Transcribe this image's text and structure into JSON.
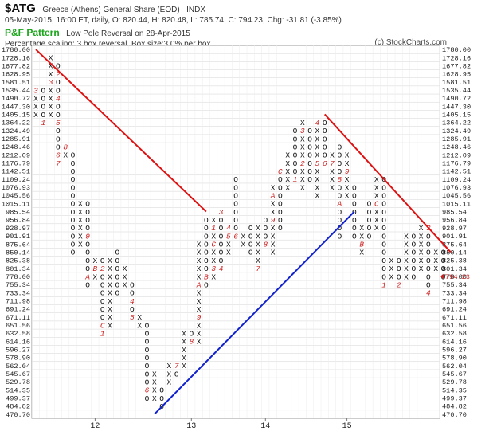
{
  "header": {
    "symbol": "$ATG",
    "name": "Greece (Athens) General Share (EOD)",
    "exchange": "INDX",
    "ohlc_line": "05-May-2015, 16:00 ET, daily, O: 820.44, H: 820.48, L: 785.74, C: 794.23, Chg: -31.81 (-3.85%)",
    "pattern_title": "P&F Pattern",
    "pattern_text": "Low Pole Reversal on 28-Apr-2015",
    "scaling": "Percentage scaling: 3 box reversal, Box size:3.0% per box",
    "copyright": "(c) StockCharts.com"
  },
  "colors": {
    "x_mark": "#111111",
    "o_mark": "#111111",
    "month_marker": "#cc2222",
    "resistance_line": "#dd1111",
    "support_line": "#1122cc",
    "price_label": "#cc2222",
    "grid": "#d4d4d4"
  },
  "chart_data": {
    "type": "point-and-figure",
    "reversal": 3,
    "box_size_percent": 3.0,
    "y_levels": [
      "1780.00",
      "1728.16",
      "1677.82",
      "1628.95",
      "1581.51",
      "1535.44",
      "1490.72",
      "1447.30",
      "1405.15",
      "1364.22",
      "1324.49",
      "1285.91",
      "1248.46",
      "1212.09",
      "1176.79",
      "1142.51",
      "1109.24",
      "1076.93",
      "1045.56",
      "1015.11",
      "985.54",
      "956.84",
      "928.97",
      "901.91",
      "875.64",
      "850.14",
      "825.38",
      "801.34",
      "778.00",
      "755.34",
      "733.34",
      "711.98",
      "691.24",
      "671.11",
      "651.56",
      "632.58",
      "614.16",
      "596.27",
      "578.90",
      "562.04",
      "545.67",
      "529.78",
      "514.35",
      "499.37",
      "484.82",
      "470.70"
    ],
    "x_axis_labels": [
      {
        "label": "12",
        "col": 8
      },
      {
        "label": "13",
        "col": 21
      },
      {
        "label": "14",
        "col": 31
      },
      {
        "label": "15",
        "col": 42
      }
    ],
    "current_price": "794.23",
    "current_price_level": 28,
    "columns": [
      {
        "type": "X",
        "top": 5,
        "bottom": 8,
        "marks": {
          "5": "3"
        }
      },
      {
        "type": "O",
        "top": 5,
        "bottom": 9,
        "marks": {
          "9": "1"
        }
      },
      {
        "type": "X",
        "top": 1,
        "bottom": 8,
        "marks": {
          "4": "3"
        }
      },
      {
        "type": "O",
        "top": 2,
        "bottom": 14,
        "marks": {
          "3": "2",
          "6": "4",
          "9": "5",
          "13": "6",
          "14": "7"
        }
      },
      {
        "type": "X",
        "top": 12,
        "bottom": 13,
        "marks": {
          "12": "8"
        }
      },
      {
        "type": "O",
        "top": 13,
        "bottom": 25
      },
      {
        "type": "X",
        "top": 19,
        "bottom": 24
      },
      {
        "type": "O",
        "top": 19,
        "bottom": 29,
        "marks": {
          "23": "9",
          "28": "A"
        }
      },
      {
        "type": "X",
        "top": 26,
        "bottom": 28,
        "marks": {
          "27": "B"
        }
      },
      {
        "type": "O",
        "top": 26,
        "bottom": 35,
        "marks": {
          "27": "2",
          "34": "C",
          "35": "1"
        }
      },
      {
        "type": "X",
        "top": 26,
        "bottom": 34
      },
      {
        "type": "O",
        "top": 25,
        "bottom": 30
      },
      {
        "type": "X",
        "top": 27,
        "bottom": 29
      },
      {
        "type": "O",
        "top": 29,
        "bottom": 33,
        "marks": {
          "31": "4",
          "33": "5"
        }
      },
      {
        "type": "X",
        "top": 33,
        "bottom": 34
      },
      {
        "type": "O",
        "top": 34,
        "bottom": 43,
        "marks": {
          "42": "6"
        }
      },
      {
        "type": "X",
        "top": 40,
        "bottom": 43,
        "marks": {
          "42": "X"
        }
      },
      {
        "type": "O",
        "top": 42,
        "bottom": 44
      },
      {
        "type": "X",
        "top": 39,
        "bottom": 41
      },
      {
        "type": "O",
        "top": 39,
        "bottom": 40,
        "marks": {
          "39": "7"
        }
      },
      {
        "type": "X",
        "top": 35,
        "bottom": 39
      },
      {
        "type": "O",
        "top": 35,
        "bottom": 36,
        "marks": {
          "36": "8"
        }
      },
      {
        "type": "X",
        "top": 24,
        "bottom": 36,
        "marks": {
          "29": "A",
          "33": "9"
        }
      },
      {
        "type": "O",
        "top": 21,
        "bottom": 29,
        "marks": {
          "28": "B"
        }
      },
      {
        "type": "X",
        "top": 21,
        "bottom": 28,
        "marks": {
          "22": "1",
          "24": "C",
          "27": "3"
        }
      },
      {
        "type": "O",
        "top": 20,
        "bottom": 27,
        "marks": {
          "20": "3",
          "27": "4"
        }
      },
      {
        "type": "X",
        "top": 22,
        "bottom": 25,
        "marks": {
          "22": "4",
          "23": "5"
        }
      },
      {
        "type": "O",
        "top": 16,
        "bottom": 23,
        "marks": {
          "23": "6"
        }
      },
      {
        "type": "X",
        "top": 23,
        "bottom": 24
      },
      {
        "type": "O",
        "top": 22,
        "bottom": 25
      },
      {
        "type": "X",
        "top": 22,
        "bottom": 27,
        "marks": {
          "27": "7"
        }
      },
      {
        "type": "O",
        "top": 21,
        "bottom": 24,
        "marks": {
          "24": "8"
        }
      },
      {
        "type": "X",
        "top": 17,
        "bottom": 25,
        "marks": {
          "18": "A",
          "21": "9"
        }
      },
      {
        "type": "O",
        "top": 15,
        "bottom": 22,
        "marks": {
          "15": "C"
        }
      },
      {
        "type": "X",
        "top": 13,
        "bottom": 17
      },
      {
        "type": "O",
        "top": 10,
        "bottom": 16,
        "marks": {
          "16": "1"
        }
      },
      {
        "type": "X",
        "top": 9,
        "bottom": 17,
        "marks": {
          "10": "3",
          "14": "2"
        }
      },
      {
        "type": "O",
        "top": 10,
        "bottom": 16
      },
      {
        "type": "X",
        "top": 9,
        "bottom": 18,
        "marks": {
          "9": "4",
          "14": "5"
        }
      },
      {
        "type": "O",
        "top": 9,
        "bottom": 14,
        "marks": {
          "14": "6"
        }
      },
      {
        "type": "X",
        "top": 13,
        "bottom": 17,
        "marks": {
          "14": "7"
        }
      },
      {
        "type": "O",
        "top": 12,
        "bottom": 23,
        "marks": {
          "16": "8",
          "19": "A"
        }
      },
      {
        "type": "X",
        "top": 13,
        "bottom": 18,
        "marks": {
          "15": "9"
        }
      },
      {
        "type": "O",
        "top": 17,
        "bottom": 23
      },
      {
        "type": "X",
        "top": 22,
        "bottom": 25,
        "marks": {
          "24": "B"
        }
      },
      {
        "type": "O",
        "top": 19,
        "bottom": 23
      },
      {
        "type": "X",
        "top": 16,
        "bottom": 22,
        "marks": {
          "19": "C"
        }
      },
      {
        "type": "O",
        "top": 16,
        "bottom": 29,
        "marks": {
          "29": "1"
        }
      },
      {
        "type": "X",
        "top": 26,
        "bottom": 28
      },
      {
        "type": "O",
        "top": 26,
        "bottom": 29,
        "marks": {
          "29": "2"
        }
      },
      {
        "type": "X",
        "top": 23,
        "bottom": 28
      },
      {
        "type": "O",
        "top": 23,
        "bottom": 28
      },
      {
        "type": "X",
        "top": 22,
        "bottom": 27
      },
      {
        "type": "O",
        "top": 22,
        "bottom": 30,
        "marks": {
          "22": "3",
          "30": "4"
        }
      },
      {
        "type": "X",
        "top": 25,
        "bottom": 27
      },
      {
        "type": "O",
        "top": 25,
        "bottom": 28
      }
    ],
    "trendlines": [
      {
        "name": "resistance-1",
        "color": "resistance",
        "from": {
          "col": 0,
          "level": 0
        },
        "to": {
          "col": 23,
          "level": 20
        }
      },
      {
        "name": "resistance-2",
        "color": "resistance",
        "from": {
          "col": 39,
          "level": 8
        },
        "to": {
          "col": 56,
          "level": 25
        }
      },
      {
        "name": "support",
        "color": "support",
        "from": {
          "col": 16,
          "level": 45
        },
        "to": {
          "col": 43,
          "level": 20
        }
      }
    ]
  }
}
